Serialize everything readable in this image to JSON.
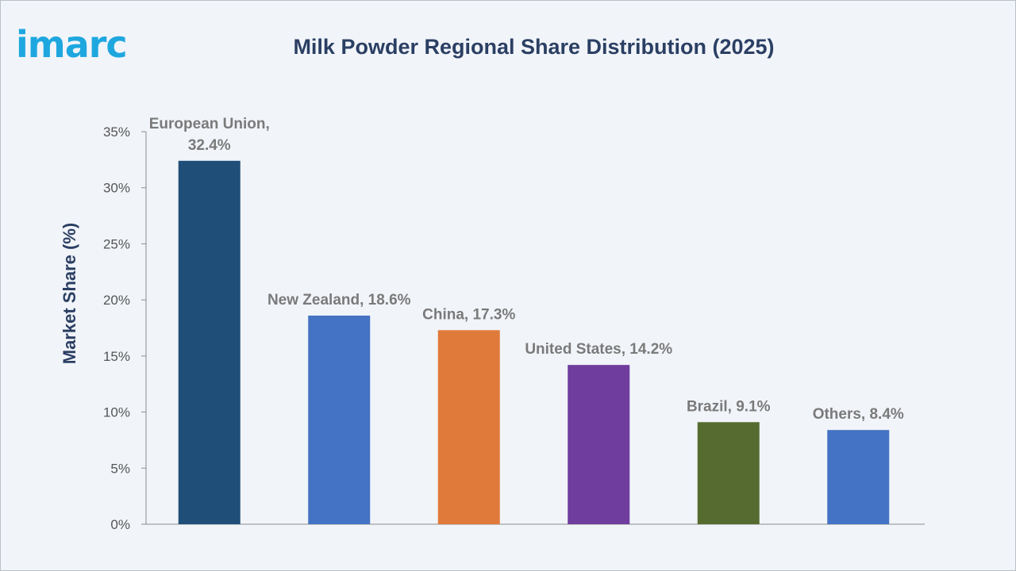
{
  "brand": {
    "logo_text": "imarc",
    "logo_color": "#1ea7df"
  },
  "chart_data": {
    "type": "bar",
    "title": "Milk Powder Regional Share Distribution (2025)",
    "xlabel": "",
    "ylabel": "Market Share (%)",
    "ylim": [
      0,
      35
    ],
    "yticks": [
      0,
      5,
      10,
      15,
      20,
      25,
      30,
      35
    ],
    "ytick_labels": [
      "0%",
      "5%",
      "10%",
      "15%",
      "20%",
      "25%",
      "30%",
      "35%"
    ],
    "categories": [
      "European Union",
      "New Zealand",
      "China",
      "United States",
      "Brazil",
      "Others"
    ],
    "values": [
      32.4,
      18.6,
      17.3,
      14.2,
      9.1,
      8.4
    ],
    "data_labels": [
      [
        "European Union,",
        "32.4%"
      ],
      [
        "New Zealand, 18.6%"
      ],
      [
        "China, 17.3%"
      ],
      [
        "United States, 14.2%"
      ],
      [
        "Brazil, 9.1%"
      ],
      [
        "Others, 8.4%"
      ]
    ],
    "colors": [
      "#1f4e79",
      "#4472c4",
      "#e07a3a",
      "#6f3d9e",
      "#566b2f",
      "#4472c4"
    ],
    "grid": false,
    "legend": "none"
  }
}
